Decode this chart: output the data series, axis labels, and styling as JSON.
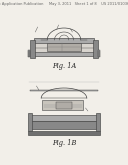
{
  "bg_color": "#f2efe9",
  "header_text": "Patent Application Publication     May 3, 2011   Sheet 1 of 8    US 2011/0103622 A1",
  "fig1a_label": "Fig. 1A",
  "fig1b_label": "Fig. 1B",
  "header_fontsize": 2.6,
  "label_fontsize": 4.8,
  "line_color": "#444444",
  "gray_dark": "#888888",
  "gray_mid": "#aaaaaa",
  "gray_light": "#cccccc",
  "gray_inner": "#d8d4ce"
}
